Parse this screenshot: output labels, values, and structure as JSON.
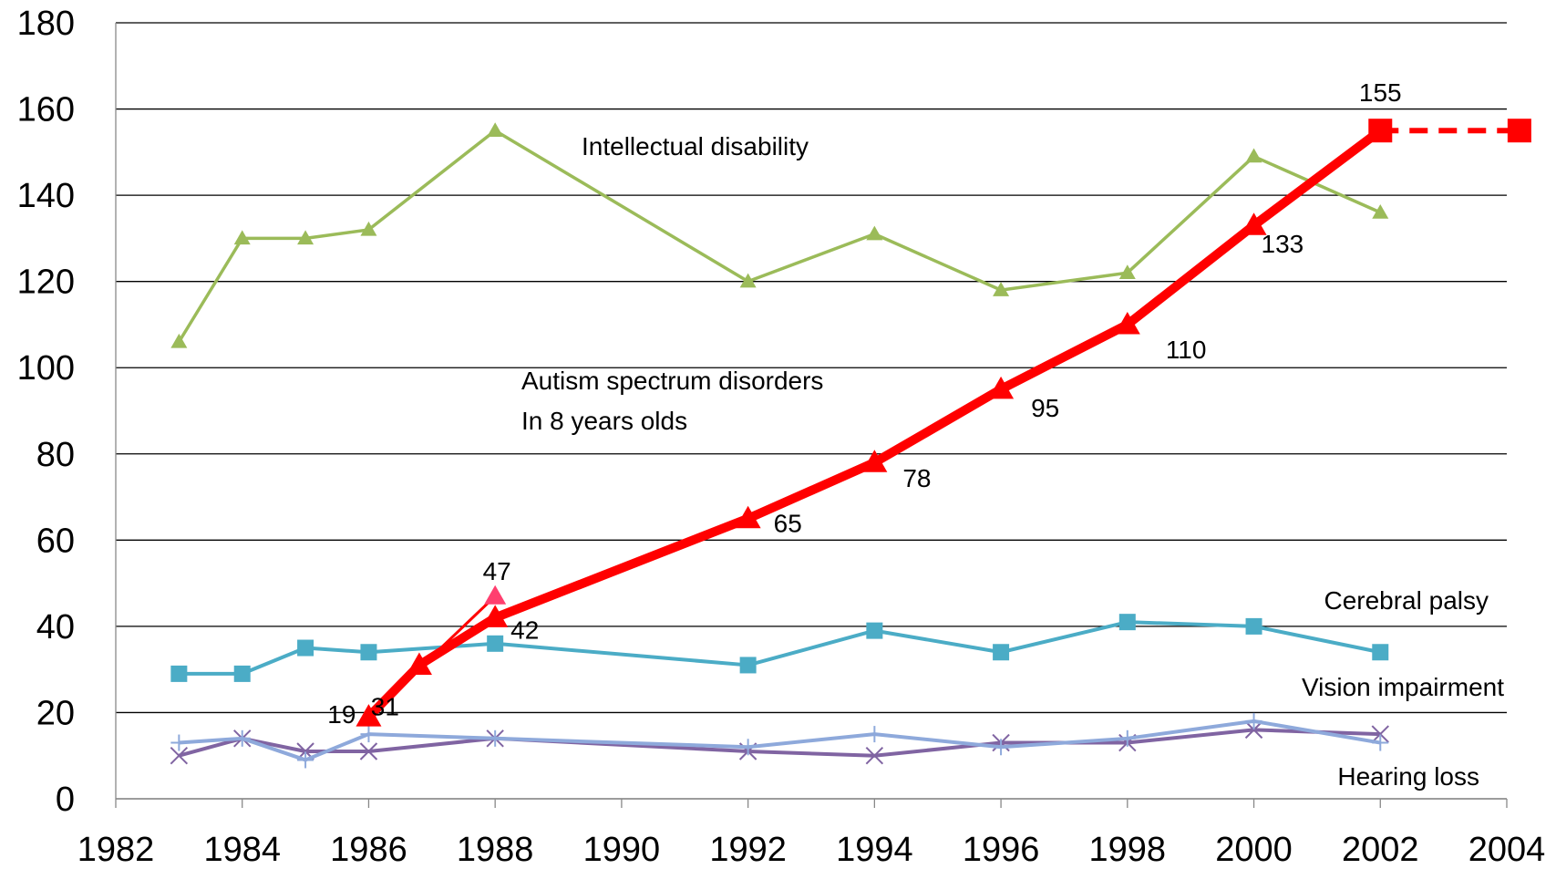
{
  "chart_data": {
    "type": "line",
    "title": "",
    "xlabel": "",
    "ylabel": "",
    "xlim": [
      1982,
      2004
    ],
    "ylim": [
      0,
      180
    ],
    "xticks": [
      "1982",
      "1984",
      "1986",
      "1988",
      "1990",
      "1992",
      "1994",
      "1996",
      "1998",
      "2000",
      "2002",
      "2004"
    ],
    "yticks": [
      "0",
      "20",
      "40",
      "60",
      "80",
      "100",
      "120",
      "140",
      "160",
      "180"
    ],
    "grid": "horizontal",
    "legend": "none",
    "colors": {
      "intellectual": "#9bbb59",
      "autism": "#ff0000",
      "cerebral": "#4bacc6",
      "vision": "#8ea9db",
      "hearing": "#8064a2"
    },
    "series": [
      {
        "name": "Intellectual disability",
        "marker": "triangle",
        "points": [
          [
            1983,
            106
          ],
          [
            1984,
            130
          ],
          [
            1985,
            130
          ],
          [
            1986,
            132
          ],
          [
            1988,
            155
          ],
          [
            1992,
            120
          ],
          [
            1994,
            131
          ],
          [
            1996,
            118
          ],
          [
            1998,
            122
          ],
          [
            2000,
            149
          ],
          [
            2002,
            136
          ]
        ]
      },
      {
        "name": "Autism spectrum disorders\nIn 8 years olds",
        "marker": "triangle",
        "points": [
          [
            1986,
            19
          ],
          [
            1986.8,
            31
          ],
          [
            1988,
            42
          ],
          [
            1992,
            65
          ],
          [
            1994,
            78
          ],
          [
            1996,
            95
          ],
          [
            1998,
            110
          ],
          [
            2000,
            133
          ],
          [
            2002,
            155
          ]
        ],
        "data_labels": [
          "19",
          "31",
          "42",
          "65",
          "78",
          "95",
          "110",
          "133",
          "155"
        ],
        "extra_point": {
          "x": 1988,
          "y": 47,
          "label": "47"
        },
        "projection": [
          [
            2002,
            155
          ],
          [
            2004.2,
            155
          ]
        ]
      },
      {
        "name": "Cerebral palsy",
        "marker": "square",
        "points": [
          [
            1983,
            29
          ],
          [
            1984,
            29
          ],
          [
            1985,
            35
          ],
          [
            1986,
            34
          ],
          [
            1988,
            36
          ],
          [
            1992,
            31
          ],
          [
            1994,
            39
          ],
          [
            1996,
            34
          ],
          [
            1998,
            41
          ],
          [
            2000,
            40
          ],
          [
            2002,
            34
          ]
        ]
      },
      {
        "name": "Vision impairment",
        "marker": "plus",
        "points": [
          [
            1983,
            13
          ],
          [
            1984,
            14
          ],
          [
            1985,
            9
          ],
          [
            1986,
            15
          ],
          [
            1988,
            14
          ],
          [
            1992,
            12
          ],
          [
            1994,
            15
          ],
          [
            1996,
            12
          ],
          [
            1998,
            14
          ],
          [
            2000,
            18
          ],
          [
            2002,
            13
          ]
        ]
      },
      {
        "name": "Hearing loss",
        "marker": "x",
        "points": [
          [
            1983,
            10
          ],
          [
            1984,
            14
          ],
          [
            1985,
            11
          ],
          [
            1986,
            11
          ],
          [
            1988,
            14
          ],
          [
            1992,
            11
          ],
          [
            1994,
            10
          ],
          [
            1996,
            13
          ],
          [
            1998,
            13
          ],
          [
            2000,
            16
          ],
          [
            2002,
            15
          ]
        ]
      }
    ]
  }
}
